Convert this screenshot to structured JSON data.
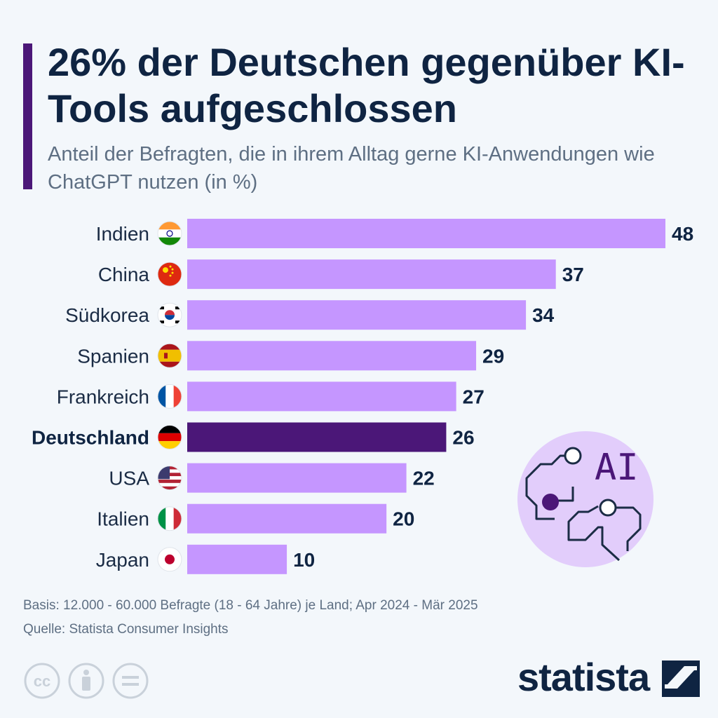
{
  "title": "26% der Deutschen gegenüber KI-Tools aufgeschlossen",
  "subtitle": "Anteil der Befragten, die in ihrem Alltag gerne KI-Anwendungen wie ChatGPT nutzen (in %)",
  "footnote_basis": "Basis: 12.000 - 60.000 Befragte (18 - 64 Jahre) je Land; Apr 2024 - Mär 2025",
  "footnote_source": "Quelle: Statista Consumer Insights",
  "brand": "statista",
  "illustration_text": "AI",
  "colors": {
    "bar": "#c596ff",
    "highlight": "#4b1778",
    "accent": "#4b1778",
    "text": "#0f2442"
  },
  "icons": {
    "license": [
      "cc-icon",
      "by-icon",
      "nd-icon"
    ],
    "logo_mark": "statista-mark-icon",
    "illustration": "ai-circuit-icon"
  },
  "chart_data": {
    "type": "bar",
    "orientation": "horizontal",
    "categories": [
      "Indien",
      "China",
      "Südkorea",
      "Spanien",
      "Frankreich",
      "Deutschland",
      "USA",
      "Italien",
      "Japan"
    ],
    "values": [
      48,
      37,
      34,
      29,
      27,
      26,
      22,
      20,
      10
    ],
    "highlight": "Deutschland",
    "flags": [
      "india-flag-icon",
      "china-flag-icon",
      "south-korea-flag-icon",
      "spain-flag-icon",
      "france-flag-icon",
      "germany-flag-icon",
      "usa-flag-icon",
      "italy-flag-icon",
      "japan-flag-icon"
    ],
    "xlim": [
      0,
      48
    ],
    "grid": false,
    "legend": "none",
    "xlabel": "",
    "ylabel": ""
  }
}
